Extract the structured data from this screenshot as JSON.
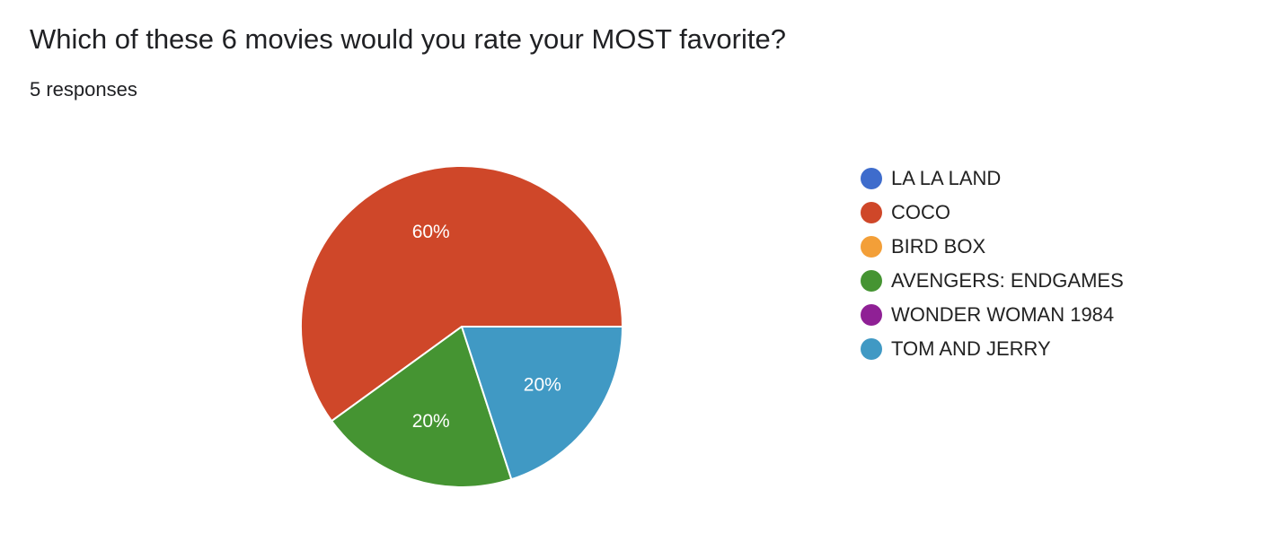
{
  "question": {
    "title": "Which of these 6 movies would you rate your MOST favorite?",
    "responses": "5 responses"
  },
  "chart_data": {
    "type": "pie",
    "categories": [
      "LA LA LAND",
      "COCO",
      "BIRD BOX",
      "AVENGERS: ENDGAMES",
      "WONDER WOMAN 1984",
      "TOM AND JERRY"
    ],
    "values": [
      0,
      60,
      0,
      20,
      0,
      20
    ],
    "slice_labels": [
      "",
      "60%",
      "",
      "20%",
      "",
      "20%"
    ],
    "colors": [
      "#3e6ccc",
      "#cf4729",
      "#f39f38",
      "#459432",
      "#8f2095",
      "#4099c4"
    ],
    "legend_position": "right",
    "start_angle_deg": 0,
    "direction": "counterclockwise"
  }
}
